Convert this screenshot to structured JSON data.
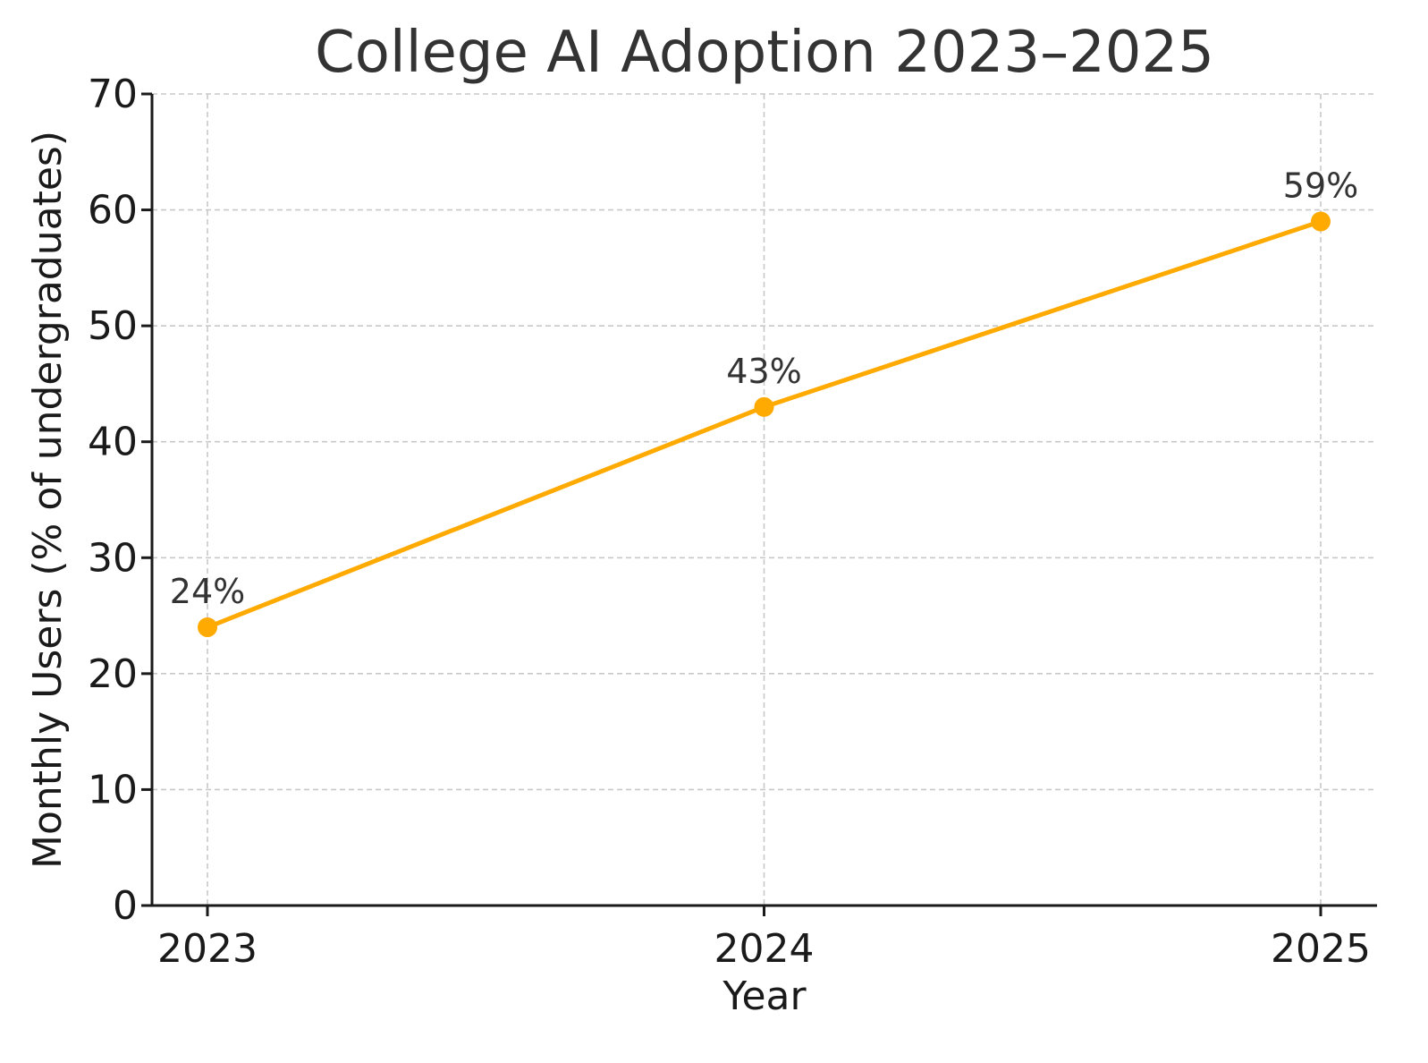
{
  "chart_data": {
    "type": "line",
    "title": "College AI Adoption 2023–2025",
    "xlabel": "Year",
    "ylabel": "Monthly Users (% of undergraduates)",
    "categories": [
      "2023",
      "2024",
      "2025"
    ],
    "series": [
      {
        "values": [
          24,
          43,
          59
        ],
        "color": "#FFAA00",
        "data_labels": [
          "24%",
          "43%",
          "59%"
        ]
      }
    ],
    "ylim": [
      0,
      70
    ],
    "yticks": [
      0,
      10,
      20,
      30,
      40,
      50,
      60,
      70
    ],
    "ytick_labels": [
      "0",
      "10",
      "20",
      "30",
      "40",
      "50",
      "60",
      "70"
    ],
    "grid": true,
    "legend": "none"
  }
}
